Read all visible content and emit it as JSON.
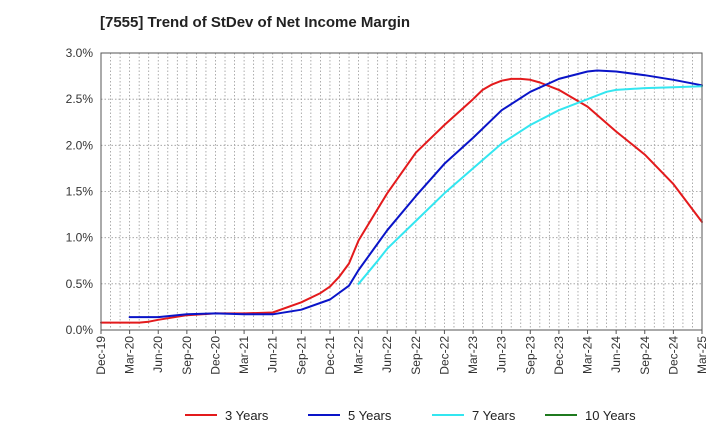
{
  "chart_data": {
    "type": "line",
    "title": "[7555]  Trend of StDev of Net Income Margin",
    "xlabel": "",
    "ylabel": "",
    "ylim": [
      0,
      3.0
    ],
    "yticks": [
      "0.0%",
      "0.5%",
      "1.0%",
      "1.5%",
      "2.0%",
      "2.5%",
      "3.0%"
    ],
    "ytick_values": [
      0,
      0.5,
      1.0,
      1.5,
      2.0,
      2.5,
      3.0
    ],
    "xticks": [
      "Dec-19",
      "Mar-20",
      "Jun-20",
      "Sep-20",
      "Dec-20",
      "Mar-21",
      "Jun-21",
      "Sep-21",
      "Dec-21",
      "Mar-22",
      "Jun-22",
      "Sep-22",
      "Dec-22",
      "Mar-23",
      "Jun-23",
      "Sep-23",
      "Dec-23",
      "Mar-24",
      "Jun-24",
      "Sep-24",
      "Dec-24",
      "Mar-25"
    ],
    "grid": true,
    "legend_position": "bottom",
    "series": [
      {
        "name": "3 Years",
        "color": "#e31a1c",
        "points": [
          [
            "Dec-19",
            0.08
          ],
          [
            "Mar-20",
            0.08
          ],
          [
            "Apr-20",
            0.08
          ],
          [
            "May-20",
            0.09
          ],
          [
            "Jun-20",
            0.11
          ],
          [
            "Sep-20",
            0.16
          ],
          [
            "Dec-20",
            0.18
          ],
          [
            "Mar-21",
            0.18
          ],
          [
            "Jun-21",
            0.19
          ],
          [
            "Sep-21",
            0.3
          ],
          [
            "Nov-21",
            0.4
          ],
          [
            "Dec-21",
            0.47
          ],
          [
            "Jan-22",
            0.58
          ],
          [
            "Feb-22",
            0.72
          ],
          [
            "Mar-22",
            0.97
          ],
          [
            "Jun-22",
            1.48
          ],
          [
            "Sep-22",
            1.92
          ],
          [
            "Dec-22",
            2.22
          ],
          [
            "Mar-23",
            2.5
          ],
          [
            "Apr-23",
            2.6
          ],
          [
            "May-23",
            2.66
          ],
          [
            "Jun-23",
            2.7
          ],
          [
            "Jul-23",
            2.72
          ],
          [
            "Aug-23",
            2.72
          ],
          [
            "Sep-23",
            2.71
          ],
          [
            "Oct-23",
            2.68
          ],
          [
            "Dec-23",
            2.6
          ],
          [
            "Mar-24",
            2.42
          ],
          [
            "Jun-24",
            2.15
          ],
          [
            "Sep-24",
            1.9
          ],
          [
            "Dec-24",
            1.58
          ],
          [
            "Mar-25",
            1.17
          ]
        ]
      },
      {
        "name": "5 Years",
        "color": "#0a14c8",
        "points": [
          [
            "Mar-20",
            0.14
          ],
          [
            "Jun-20",
            0.14
          ],
          [
            "Sep-20",
            0.17
          ],
          [
            "Dec-20",
            0.18
          ],
          [
            "Mar-21",
            0.17
          ],
          [
            "Jun-21",
            0.17
          ],
          [
            "Sep-21",
            0.22
          ],
          [
            "Dec-21",
            0.33
          ],
          [
            "Feb-22",
            0.48
          ],
          [
            "Mar-22",
            0.65
          ],
          [
            "Jun-22",
            1.08
          ],
          [
            "Sep-22",
            1.45
          ],
          [
            "Dec-22",
            1.8
          ],
          [
            "Mar-23",
            2.08
          ],
          [
            "Jun-23",
            2.38
          ],
          [
            "Sep-23",
            2.58
          ],
          [
            "Dec-23",
            2.72
          ],
          [
            "Mar-24",
            2.8
          ],
          [
            "Apr-24",
            2.81
          ],
          [
            "Jun-24",
            2.8
          ],
          [
            "Sep-24",
            2.76
          ],
          [
            "Dec-24",
            2.71
          ],
          [
            "Mar-25",
            2.65
          ]
        ]
      },
      {
        "name": "7 Years",
        "color": "#33e6f0",
        "points": [
          [
            "Mar-22",
            0.5
          ],
          [
            "May-22",
            0.75
          ],
          [
            "Jun-22",
            0.88
          ],
          [
            "Sep-22",
            1.18
          ],
          [
            "Dec-22",
            1.48
          ],
          [
            "Mar-23",
            1.75
          ],
          [
            "Jun-23",
            2.02
          ],
          [
            "Sep-23",
            2.22
          ],
          [
            "Dec-23",
            2.38
          ],
          [
            "Mar-24",
            2.5
          ],
          [
            "May-24",
            2.58
          ],
          [
            "Jun-24",
            2.6
          ],
          [
            "Sep-24",
            2.62
          ],
          [
            "Dec-24",
            2.63
          ],
          [
            "Mar-25",
            2.64
          ]
        ]
      },
      {
        "name": "10 Years",
        "color": "#1f7a1f",
        "points": []
      }
    ]
  }
}
